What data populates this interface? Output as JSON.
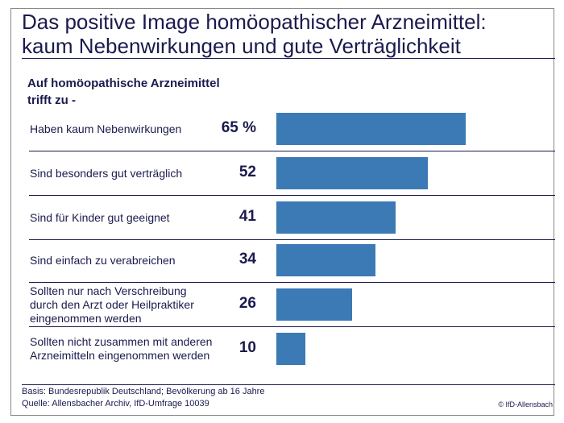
{
  "header": {
    "title_line1": "Das positive Image homöopathischer Arzneimittel:",
    "title_line2": "kaum Nebenwirkungen und gute Verträglichkeit"
  },
  "chart_data": {
    "type": "bar",
    "orientation": "horizontal",
    "title": "Das positive Image homöopathischer Arzneimittel: kaum Nebenwirkungen und gute Verträglichkeit",
    "subtitle_line1": "Auf homöopathische Arzneimittel",
    "subtitle_line2": "trifft zu -",
    "unit": "%",
    "categories": [
      "Haben kaum Nebenwirkungen",
      "Sind besonders gut verträglich",
      "Sind für Kinder gut geeignet",
      "Sind einfach zu verabreichen",
      "Sollten nur nach Verschreibung durch den Arzt oder Heilpraktiker eingenommen werden",
      "Sollten nicht zusammen mit anderen Arzneimitteln eingenommen werden"
    ],
    "values": [
      65,
      52,
      41,
      34,
      26,
      10
    ],
    "value_labels": [
      "65 %",
      "52",
      "41",
      "34",
      "26",
      "10"
    ],
    "bar_color": "#3b7ab5",
    "grid": false
  },
  "footer": {
    "basis": "Basis: Bundesrepublik Deutschland; Bevölkerung ab 16 Jahre",
    "source": "Quelle: Allensbacher Archiv, IfD-Umfrage 10039",
    "copyright": "© IfD-Allensbach"
  }
}
